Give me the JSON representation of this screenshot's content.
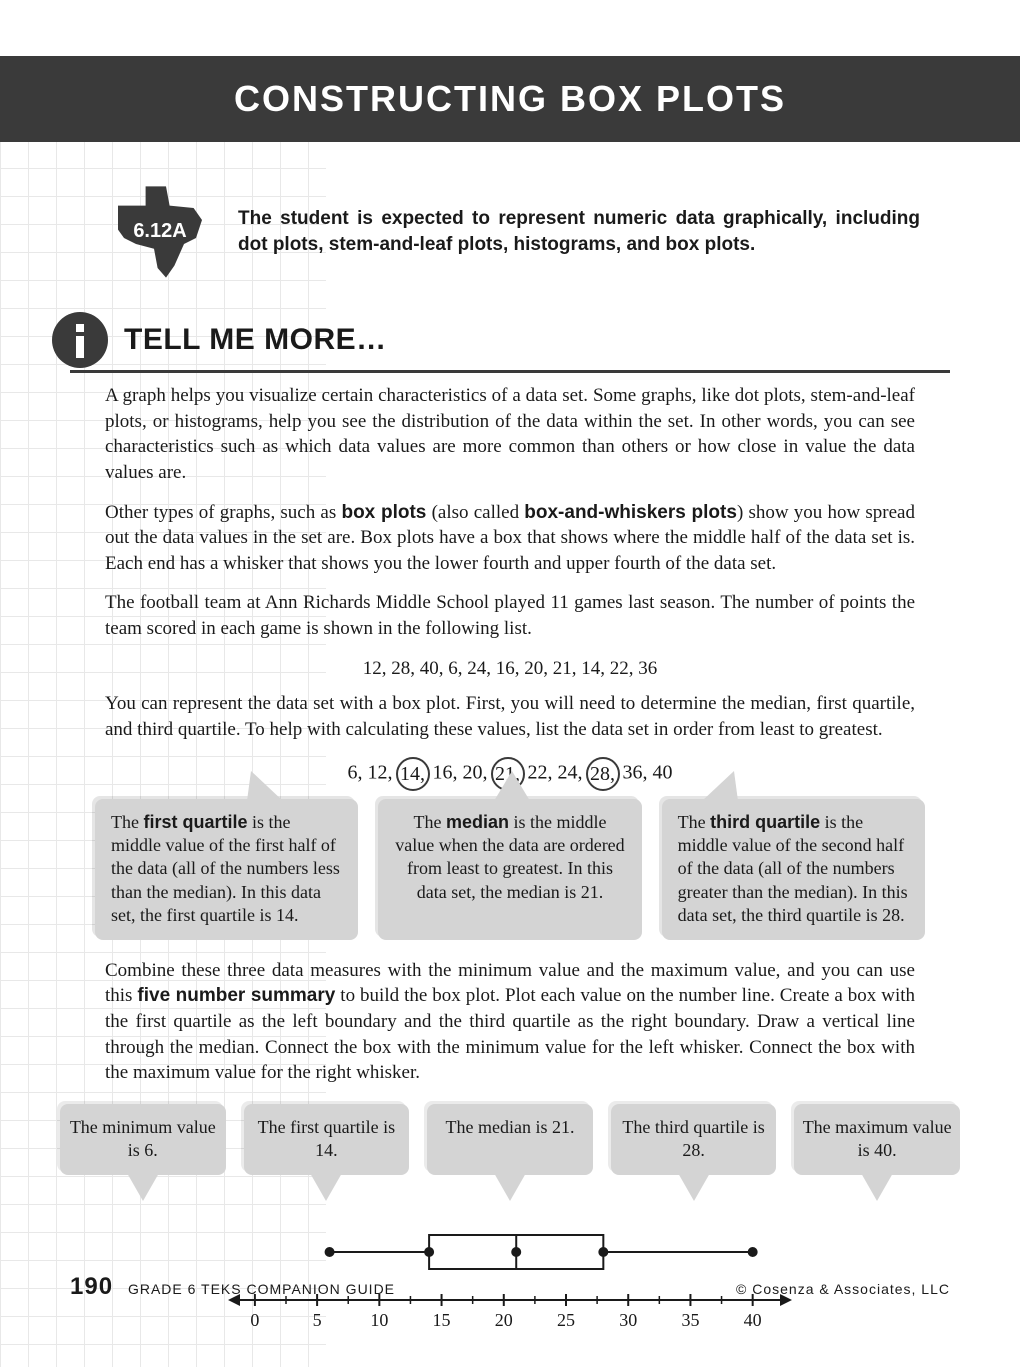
{
  "header": {
    "title": "CONSTRUCTING BOX PLOTS",
    "title_color": "#ffffff",
    "bar_color": "#3a3a3a",
    "title_fontsize": 36
  },
  "standard": {
    "code": "6.12A",
    "badge_color": "#3a3a3a",
    "text_prefix": "The student is expected to represent numeric data graphically, including dot plots, stem-and-leaf plots, histograms, and box plots."
  },
  "section": {
    "icon_name": "info-icon",
    "title": "TELL ME MORE…"
  },
  "paragraphs": {
    "p1": "A graph helps you visualize certain characteristics of a data set. Some graphs, like dot plots, stem-and-leaf plots, or histograms, help you see the distribution of the data within the set. In other words, you can see characteristics such as which data values are more common than others or how close in value the data values are.",
    "p2_a": "Other types of graphs, such as ",
    "p2_b1": "box plots",
    "p2_c": " (also called ",
    "p2_b2": "box-and-whiskers plots",
    "p2_d": ") show you how spread out the data values in the set are. Box plots have a box that shows where the middle half of the data set is. Each end has a whisker that shows you the lower fourth and upper fourth of the data set.",
    "p3": "The football team at Ann Richards Middle School played 11 games last season. The number of points the team scored in each game is shown in the following list.",
    "raw_data": "12, 28, 40, 6, 24, 16, 20, 21, 14, 22, 36",
    "p4": "You can represent the data set with a box plot. First, you will need to determine the median, first quartile, and third quartile. To help with calculating these values, list the data set in order from least to greatest.",
    "ordered": {
      "v0": "6,",
      "v1": "12,",
      "v2": "14,",
      "v3": "16,",
      "v4": "20,",
      "v5": "21,",
      "v6": "22,",
      "v7": "24,",
      "v8": "28,",
      "v9": "36,",
      "v10": "40"
    },
    "p5_a": "Combine these three data measures with the minimum value and the maximum value, and you can use this ",
    "p5_b": "five number summary",
    "p5_c": " to build the box plot. Plot each value on the number line. Create a box with the first quartile as the left boundary and the third quartile as the right boundary. Draw a vertical line through the median. Connect the box with the minimum value for the left whisker. Connect the box with the maximum value for the right whisker."
  },
  "callouts": {
    "q1_a": "The ",
    "q1_b": "first quartile",
    "q1_c": " is the middle value of the first half of the data (all of the numbers less than the median). In this data set, the first quartile is 14.",
    "med_a": "The ",
    "med_b": "median",
    "med_c": " is the middle value when the data are ordered from least to greatest. In this data set, the median is 21.",
    "q3_a": "The ",
    "q3_b": "third quartile",
    "q3_c": " is the middle value of the second half of the data (all of the numbers greater than the median). In this data set, the third quartile is 28.",
    "box_bg": "#d4d4d4"
  },
  "five_summary": {
    "min": "The minimum value is 6.",
    "q1": "The first quartile is 14.",
    "med": "The median is 21.",
    "q3": "The third quartile is 28.",
    "max": "The maximum value is 40."
  },
  "boxplot": {
    "type": "boxplot",
    "min": 6,
    "q1": 14,
    "median": 21,
    "q3": 28,
    "max": 40,
    "xlim": [
      -2,
      43
    ],
    "ticks": [
      0,
      5,
      10,
      15,
      20,
      25,
      30,
      35,
      40
    ],
    "tick_labels": [
      "0",
      "5",
      "10",
      "15",
      "20",
      "25",
      "30",
      "35",
      "40"
    ],
    "line_color": "#1a1a1a",
    "box_fill": "#ffffff",
    "dot_radius": 5,
    "line_width": 2,
    "font_size": 18
  },
  "footer": {
    "page": "190",
    "book": "GRADE 6 TEKS COMPANION GUIDE",
    "copyright": "© Cosenza & Associates, LLC"
  },
  "colors": {
    "page_bg": "#ffffff",
    "grid": "#e8e8e8",
    "dark": "#3a3a3a",
    "callout_bg": "#d4d4d4"
  }
}
